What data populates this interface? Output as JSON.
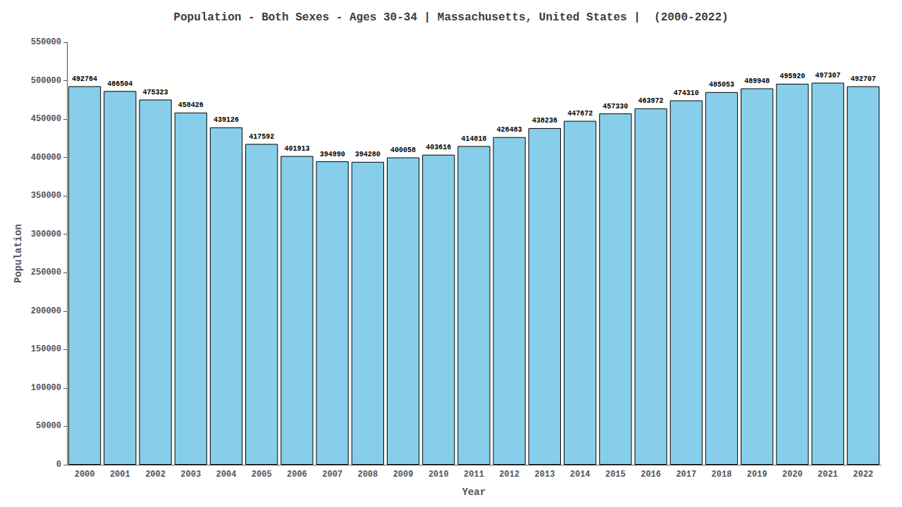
{
  "chart_data": {
    "type": "bar",
    "title": "Population - Both Sexes - Ages 30-34 | Massachusetts, United States |  (2000-2022)",
    "x_label": "Year",
    "y_label": "Population",
    "categories": [
      "2000",
      "2001",
      "2002",
      "2003",
      "2004",
      "2005",
      "2006",
      "2007",
      "2008",
      "2009",
      "2010",
      "2011",
      "2012",
      "2013",
      "2014",
      "2015",
      "2016",
      "2017",
      "2018",
      "2019",
      "2020",
      "2021",
      "2022"
    ],
    "values": [
      492764,
      486504,
      475323,
      458426,
      439126,
      417592,
      401913,
      394990,
      394280,
      400058,
      403616,
      414818,
      426483,
      438236,
      447672,
      457330,
      463972,
      474310,
      485053,
      489948,
      495920,
      497307,
      492707
    ],
    "color": "#87CEEB",
    "ylim": [
      0,
      550000
    ],
    "yticks": [
      0,
      50000,
      100000,
      150000,
      200000,
      250000,
      300000,
      350000,
      400000,
      450000,
      500000,
      550000
    ],
    "grid": false,
    "data_labels": true
  }
}
